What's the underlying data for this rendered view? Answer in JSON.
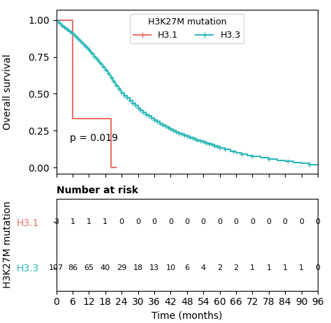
{
  "chart_data": [
    {
      "type": "step",
      "ylabel": "Overall survival",
      "xlim": [
        0,
        96
      ],
      "ylim": [
        -0.04,
        1.07
      ],
      "xticks": [
        0,
        6,
        12,
        18,
        24,
        30,
        36,
        42,
        48,
        54,
        60,
        66,
        72,
        78,
        84,
        90,
        96
      ],
      "yticks": [
        {
          "value": 0.0,
          "label": "0.00"
        },
        0.25,
        {
          "value": 0.5,
          "label": "0.50"
        },
        0.75,
        {
          "value": 1.0,
          "label": "1.00"
        }
      ],
      "tick_labels": "y",
      "legend": "upper center",
      "legend_title": "H3K27M mutation",
      "marker": "+",
      "annotations": [
        {
          "text": "p = 0.019",
          "x": 5,
          "y": 0.18
        }
      ],
      "series": [
        {
          "name": "H3.1",
          "color": "#E8736A",
          "x": [
            0,
            6,
            6,
            20,
            20,
            22
          ],
          "values": [
            1.0,
            1.0,
            0.333,
            0.333,
            0.0,
            0.0
          ]
        },
        {
          "name": "H3.3",
          "color": "#2DB8B8",
          "x": [
            0,
            1,
            1.5,
            2,
            2.5,
            3,
            3.5,
            4,
            4.5,
            5,
            5.5,
            6,
            6.5,
            7,
            7.5,
            8,
            8.5,
            9,
            9.5,
            10,
            10.5,
            11,
            11.5,
            12,
            12.5,
            13,
            13.5,
            14,
            14.5,
            15,
            15.5,
            16,
            16.5,
            17,
            17.5,
            18,
            18.5,
            19,
            19.5,
            20,
            20.5,
            21,
            21.5,
            22,
            22.5,
            23,
            23.5,
            24,
            25,
            26,
            27,
            28,
            29,
            30,
            31,
            32,
            33,
            34,
            35,
            36,
            37,
            38,
            39,
            40,
            41,
            42,
            43,
            44,
            45,
            46,
            47,
            48,
            49,
            50,
            51,
            52,
            53,
            54,
            55,
            56,
            57,
            58,
            59,
            60,
            62,
            64,
            66,
            68,
            70,
            72,
            75,
            78,
            81,
            84,
            87,
            90,
            93,
            96
          ],
          "values": [
            1.0,
            0.985,
            0.975,
            0.965,
            0.958,
            0.95,
            0.943,
            0.935,
            0.928,
            0.921,
            0.914,
            0.907,
            0.898,
            0.889,
            0.88,
            0.871,
            0.862,
            0.853,
            0.844,
            0.835,
            0.826,
            0.817,
            0.808,
            0.798,
            0.787,
            0.776,
            0.765,
            0.754,
            0.743,
            0.732,
            0.721,
            0.71,
            0.699,
            0.688,
            0.677,
            0.665,
            0.652,
            0.639,
            0.626,
            0.613,
            0.6,
            0.587,
            0.574,
            0.561,
            0.548,
            0.535,
            0.522,
            0.509,
            0.49,
            0.472,
            0.454,
            0.437,
            0.421,
            0.405,
            0.39,
            0.376,
            0.362,
            0.349,
            0.336,
            0.324,
            0.312,
            0.301,
            0.29,
            0.28,
            0.27,
            0.26,
            0.251,
            0.242,
            0.234,
            0.226,
            0.219,
            0.212,
            0.205,
            0.198,
            0.192,
            0.186,
            0.18,
            0.174,
            0.168,
            0.162,
            0.156,
            0.149,
            0.142,
            0.135,
            0.122,
            0.11,
            0.099,
            0.09,
            0.082,
            0.075,
            0.065,
            0.056,
            0.048,
            0.041,
            0.035,
            0.028,
            0.022,
            0.022
          ],
          "censor_x": [
            1,
            2,
            3,
            4,
            5,
            6,
            7,
            8,
            9,
            10,
            11,
            12,
            13,
            14,
            15,
            16,
            17,
            18,
            19,
            20,
            21,
            22,
            23,
            24,
            25,
            26,
            27,
            28,
            29,
            30,
            31,
            32,
            33,
            34,
            35,
            36,
            37,
            38,
            39,
            40,
            41,
            42,
            43,
            44,
            45,
            46,
            47,
            48,
            49,
            50,
            51,
            52,
            53,
            54,
            55,
            56,
            57,
            58,
            59,
            60,
            62,
            65,
            68,
            72,
            78,
            85,
            93
          ],
          "censor_values": [
            0.985,
            0.965,
            0.95,
            0.935,
            0.921,
            0.907,
            0.889,
            0.871,
            0.853,
            0.835,
            0.817,
            0.798,
            0.776,
            0.754,
            0.732,
            0.71,
            0.688,
            0.665,
            0.639,
            0.613,
            0.587,
            0.561,
            0.535,
            0.509,
            0.49,
            0.472,
            0.454,
            0.437,
            0.421,
            0.405,
            0.39,
            0.376,
            0.362,
            0.349,
            0.336,
            0.324,
            0.312,
            0.301,
            0.29,
            0.28,
            0.27,
            0.26,
            0.251,
            0.242,
            0.234,
            0.226,
            0.219,
            0.212,
            0.205,
            0.198,
            0.192,
            0.186,
            0.18,
            0.174,
            0.168,
            0.162,
            0.156,
            0.149,
            0.142,
            0.135,
            0.122,
            0.11,
            0.09,
            0.075,
            0.056,
            0.041,
            0.022
          ]
        }
      ]
    },
    {
      "type": "table",
      "title": "Number at risk",
      "xlabel": "Time (months)",
      "ylabel": "H3K27M mutation",
      "xlim": [
        0,
        96
      ],
      "xticks": [
        0,
        6,
        12,
        18,
        24,
        30,
        36,
        42,
        48,
        54,
        60,
        66,
        72,
        78,
        84,
        90,
        96
      ],
      "x": [
        0,
        6,
        12,
        18,
        24,
        30,
        36,
        42,
        48,
        54,
        60,
        66,
        72,
        78,
        84,
        90,
        96
      ],
      "series": [
        {
          "name": "H3.1",
          "color": "#E8736A",
          "values": [
            3,
            1,
            1,
            1,
            0,
            0,
            0,
            0,
            0,
            0,
            0,
            0,
            0,
            0,
            0,
            0,
            0
          ]
        },
        {
          "name": "H3.3",
          "color": "#2DB8B8",
          "values": [
            107,
            86,
            65,
            40,
            29,
            18,
            13,
            10,
            6,
            4,
            2,
            2,
            1,
            1,
            1,
            1,
            0
          ]
        }
      ]
    }
  ]
}
